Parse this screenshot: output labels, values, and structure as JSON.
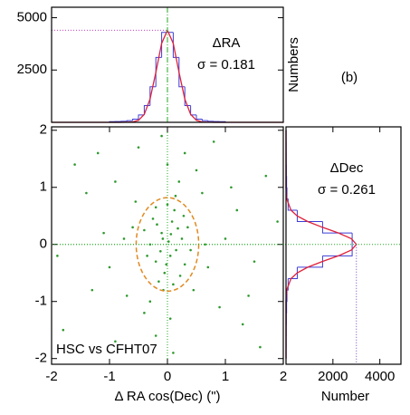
{
  "panel_label": "(b)",
  "chart_data": [
    {
      "type": "histogram",
      "orientation": "vertical",
      "ylabel": "Numbers",
      "annotations": [
        "ΔRA",
        "σ = 0.181"
      ],
      "bins": [
        -1,
        -0.9,
        -0.8,
        -0.7,
        -0.6,
        -0.5,
        -0.4,
        -0.3,
        -0.2,
        -0.1,
        0,
        0.1,
        0.2,
        0.3,
        0.4,
        0.5,
        0.6,
        0.7,
        0.8,
        0.9,
        1
      ],
      "counts": [
        30,
        40,
        50,
        80,
        150,
        350,
        800,
        1700,
        3100,
        4300,
        4300,
        3100,
        1700,
        800,
        350,
        150,
        80,
        50,
        40,
        30
      ],
      "color": "#3d3dd6",
      "fit_at": [
        -2,
        -1,
        -0.8,
        -0.6,
        -0.5,
        -0.4,
        -0.3,
        -0.2,
        -0.1,
        0,
        0.1,
        0.2,
        0.3,
        0.4,
        0.5,
        0.6,
        0.8,
        1,
        2
      ],
      "fit_counts": [
        0,
        0,
        0,
        18,
        97,
        382,
        1113,
        2388,
        3776,
        4400,
        3776,
        2388,
        1113,
        382,
        97,
        18,
        0,
        0,
        0
      ],
      "fit_color": "#e0203a",
      "peak_line": 4400,
      "peak_color": "#c040c0",
      "center_line": 0,
      "center_color": "#22aa22",
      "xlim": [
        -2,
        2
      ],
      "ylim": [
        0,
        5500
      ],
      "yticks": [
        2500,
        5000
      ]
    },
    {
      "type": "scatter",
      "xlabel": "Δ RA cos(Dec) (\")",
      "annotation": "HSC vs CFHT07",
      "color": "#2e9a2e",
      "x": [
        0.02,
        -0.1,
        0.15,
        -0.2,
        0.08,
        -0.05,
        0.25,
        -0.3,
        0.12,
        -0.15,
        0.3,
        -0.25,
        0.05,
        -0.08,
        0.18,
        -0.12,
        0.0,
        0.22,
        -0.35,
        0.35,
        -0.02,
        0.1,
        -0.2,
        0.28,
        -0.4,
        0.4,
        -0.18,
        0.06,
        -0.07,
        0.14,
        -0.6,
        0.7,
        -0.9,
        1.2,
        -1.3,
        0.5,
        -0.4,
        0.9,
        -1.1,
        1.5,
        -1.6,
        0.3,
        -0.2,
        1.7,
        -1.8,
        0.6,
        -0.7,
        1.0,
        -0.5,
        0.1,
        1.3,
        -1.4,
        0.8,
        -0.9,
        1.9,
        -1.9,
        0.45,
        -0.55,
        1.1,
        -1.0,
        0.2,
        -0.3,
        0.65,
        -0.75,
        1.4,
        -1.2,
        0.0,
        0.05,
        -0.1,
        1.6
      ],
      "y": [
        0.05,
        0.2,
        -0.1,
        -0.3,
        0.4,
        -0.5,
        0.1,
        0.0,
        0.6,
        -0.65,
        -0.35,
        0.45,
        -0.2,
        0.1,
        0.28,
        -0.12,
        0.7,
        -0.55,
        -0.2,
        0.3,
        -0.35,
        -0.7,
        0.65,
        0.5,
        0.25,
        -0.1,
        0.35,
        0.18,
        -0.8,
        0.85,
        0.3,
        -0.4,
        1.1,
        0.6,
        -0.8,
        1.3,
        -1.2,
        -1.1,
        0.2,
        -0.3,
        1.4,
        1.6,
        -1.6,
        1.2,
        -1.5,
        0.9,
        -0.9,
        0.1,
        1.7,
        -1.9,
        -1.4,
        0.9,
        1.8,
        -1.7,
        0.4,
        -0.2,
        -0.8,
        0.75,
        1.0,
        -0.4,
        1.1,
        -1.0,
        0.0,
        0.1,
        -0.9,
        1.6,
        1.4,
        -1.3,
        1.9,
        -1.8
      ],
      "ellipse": {
        "cx": 0,
        "cy": 0,
        "rx": 0.54,
        "ry": 0.82,
        "color": "#e08a20"
      },
      "ref_x": 0,
      "ref_y": 0,
      "ref_color": "#22aa22",
      "xlim": [
        -2,
        2
      ],
      "ylim": [
        -2.1,
        2.06
      ],
      "xticks": [
        -2,
        -1,
        0,
        1,
        2
      ],
      "yticks": [
        -2,
        -1,
        0,
        1,
        2
      ]
    },
    {
      "type": "histogram",
      "orientation": "horizontal",
      "xlabel": "Number",
      "annotations": [
        "ΔDec",
        "σ = 0.261"
      ],
      "bins": [
        -2,
        -1.8,
        -1.6,
        -1.4,
        -1.2,
        -1,
        -0.8,
        -0.6,
        -0.4,
        -0.2,
        0,
        0.2,
        0.4,
        0.6,
        0.8,
        1,
        1.2,
        1.4,
        1.6,
        1.8,
        2
      ],
      "counts": [
        5,
        8,
        10,
        15,
        25,
        40,
        90,
        480,
        1560,
        2820,
        2820,
        1560,
        480,
        90,
        40,
        25,
        15,
        10,
        8,
        5
      ],
      "color": "#3d3dd6",
      "fit_at": [
        -2,
        -1,
        -0.8,
        -0.6,
        -0.5,
        -0.4,
        -0.3,
        -0.2,
        -0.1,
        0,
        0.1,
        0.2,
        0.3,
        0.4,
        0.5,
        0.6,
        0.8,
        1,
        2
      ],
      "fit_counts": [
        0,
        0,
        27,
        213,
        479,
        926,
        1549,
        2236,
        2787,
        3000,
        2787,
        2236,
        1549,
        926,
        479,
        213,
        27,
        0,
        0
      ],
      "fit_color": "#e0203a",
      "peak_line": 3000,
      "peak_color": "#7040c0",
      "center_line": 0,
      "center_color": "#22aa22",
      "xlim": [
        0,
        4900
      ],
      "ylim": [
        -2.1,
        2.06
      ],
      "xticks": [
        2000,
        4000
      ]
    }
  ]
}
